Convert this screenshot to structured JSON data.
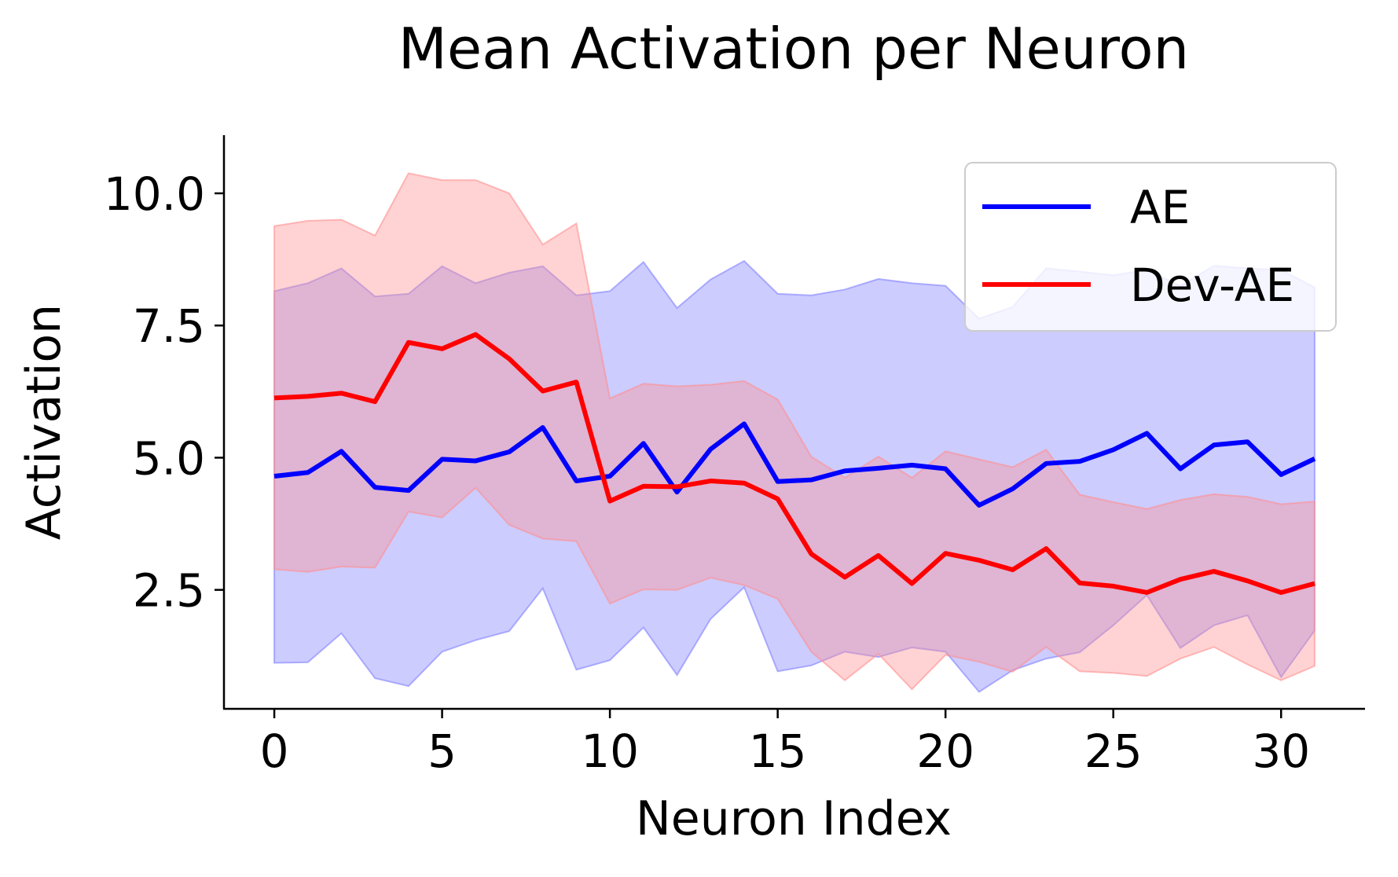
{
  "chart_data": {
    "type": "line",
    "title": "Mean Activation per Neuron",
    "xlabel": "Neuron Index",
    "ylabel": "Activation",
    "xlim": [
      -1.5,
      32.5
    ],
    "ylim": [
      0.25,
      11.1
    ],
    "xticks": [
      0,
      5,
      10,
      15,
      20,
      25,
      30
    ],
    "xtick_labels": [
      "0",
      "5",
      "10",
      "15",
      "20",
      "25",
      "30"
    ],
    "yticks": [
      2.5,
      5.0,
      7.5,
      10.0
    ],
    "ytick_labels": [
      "2.5",
      "5.0",
      "7.5",
      "10.0"
    ],
    "grid": false,
    "legend_position": "top-right",
    "x": [
      0,
      1,
      2,
      3,
      4,
      5,
      6,
      7,
      8,
      9,
      10,
      11,
      12,
      13,
      14,
      15,
      16,
      17,
      18,
      19,
      20,
      21,
      22,
      23,
      24,
      25,
      26,
      27,
      28,
      29,
      30,
      31
    ],
    "series": [
      {
        "name": "AE",
        "color": "#0000ff",
        "band_color": "#8080ff",
        "mean": [
          4.65,
          4.72,
          5.12,
          4.44,
          4.38,
          4.97,
          4.94,
          5.11,
          5.57,
          4.56,
          4.65,
          5.27,
          4.35,
          5.16,
          5.64,
          4.55,
          4.58,
          4.75,
          4.8,
          4.86,
          4.79,
          4.1,
          4.41,
          4.89,
          4.93,
          5.15,
          5.46,
          4.79,
          5.24,
          5.3,
          4.68,
          4.98
        ],
        "upper": [
          8.15,
          8.3,
          8.58,
          8.05,
          8.1,
          8.62,
          8.3,
          8.5,
          8.62,
          8.07,
          8.15,
          8.7,
          7.83,
          8.37,
          8.72,
          8.1,
          8.07,
          8.18,
          8.38,
          8.3,
          8.25,
          7.63,
          7.85,
          8.58,
          8.52,
          8.45,
          8.55,
          8.25,
          8.63,
          8.58,
          8.55,
          8.22
        ],
        "lower": [
          1.12,
          1.13,
          1.68,
          0.83,
          0.68,
          1.33,
          1.55,
          1.72,
          2.53,
          0.99,
          1.17,
          1.79,
          0.89,
          1.95,
          2.55,
          0.96,
          1.07,
          1.33,
          1.23,
          1.41,
          1.33,
          0.57,
          0.98,
          1.2,
          1.32,
          1.83,
          2.4,
          1.4,
          1.83,
          2.02,
          0.85,
          1.73
        ]
      },
      {
        "name": "Dev-AE",
        "color": "#ff0000",
        "band_color": "#ff9090",
        "mean": [
          6.13,
          6.16,
          6.22,
          6.06,
          7.18,
          7.06,
          7.33,
          6.87,
          6.26,
          6.43,
          4.18,
          4.46,
          4.45,
          4.56,
          4.52,
          4.22,
          3.18,
          2.74,
          3.15,
          2.62,
          3.19,
          3.06,
          2.88,
          3.28,
          2.63,
          2.57,
          2.45,
          2.7,
          2.85,
          2.67,
          2.45,
          2.62
        ],
        "upper": [
          9.38,
          9.48,
          9.5,
          9.2,
          10.38,
          10.25,
          10.25,
          10.0,
          9.03,
          9.43,
          6.12,
          6.4,
          6.35,
          6.38,
          6.45,
          6.1,
          5.02,
          4.62,
          5.02,
          4.62,
          5.12,
          4.97,
          4.82,
          5.15,
          4.3,
          4.16,
          4.03,
          4.2,
          4.31,
          4.26,
          4.12,
          4.17
        ],
        "lower": [
          2.89,
          2.84,
          2.94,
          2.92,
          3.98,
          3.87,
          4.43,
          3.73,
          3.47,
          3.42,
          2.24,
          2.51,
          2.5,
          2.73,
          2.59,
          2.33,
          1.33,
          0.79,
          1.29,
          0.62,
          1.27,
          1.14,
          0.95,
          1.42,
          0.96,
          0.93,
          0.87,
          1.2,
          1.42,
          1.09,
          0.79,
          1.06
        ]
      }
    ]
  }
}
